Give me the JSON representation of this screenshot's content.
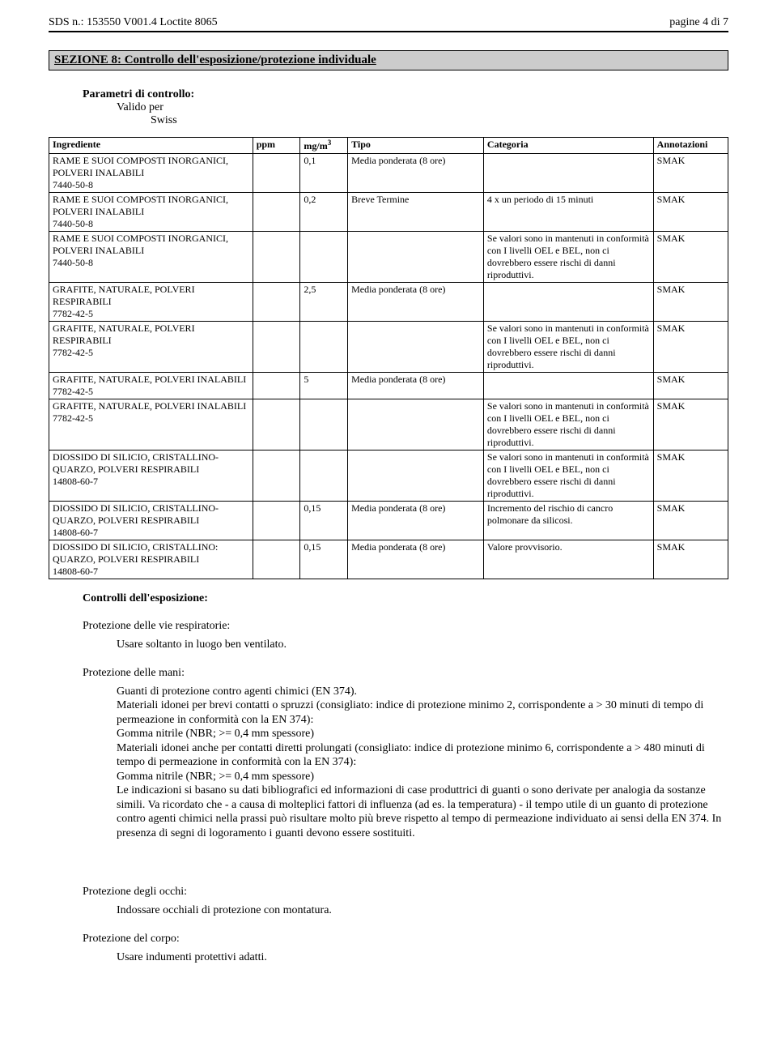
{
  "header": {
    "left": "SDS n.: 153550   V001.4      Loctite 8065",
    "right": "pagine 4 di 7"
  },
  "section_title": "SEZIONE 8: Controllo dell'esposizione/protezione individuale",
  "params_label": "Parametri di controllo:",
  "valido_per": "Valido per",
  "country": "Swiss",
  "table": {
    "columns": {
      "ingrediente": "Ingrediente",
      "ppm": "ppm",
      "mgm3": "mg/m",
      "mgm3_exp": "3",
      "tipo": "Tipo",
      "categoria": "Categoria",
      "annotazioni": "Annotazioni"
    },
    "rows": [
      {
        "ing": "RAME E SUOI COMPOSTI INORGANICI, POLVERI INALABILI\n7440-50-8",
        "ppm": "",
        "mgm3": "0,1",
        "tipo": "Media ponderata (8 ore)",
        "cat": "",
        "ann": "SMAK"
      },
      {
        "ing": "RAME E SUOI COMPOSTI INORGANICI, POLVERI INALABILI\n7440-50-8",
        "ppm": "",
        "mgm3": "0,2",
        "tipo": "Breve Termine",
        "cat": "4 x un periodo di 15 minuti",
        "ann": "SMAK"
      },
      {
        "ing": "RAME E SUOI COMPOSTI INORGANICI, POLVERI INALABILI\n7440-50-8",
        "ppm": "",
        "mgm3": "",
        "tipo": "",
        "cat": "Se valori sono in mantenuti in conformità con I livelli OEL e BEL, non ci dovrebbero essere rischi di danni riproduttivi.",
        "ann": "SMAK"
      },
      {
        "ing": "GRAFITE, NATURALE, POLVERI RESPIRABILI\n7782-42-5",
        "ppm": "",
        "mgm3": "2,5",
        "tipo": "Media ponderata (8 ore)",
        "cat": "",
        "ann": "SMAK"
      },
      {
        "ing": "GRAFITE, NATURALE, POLVERI RESPIRABILI\n7782-42-5",
        "ppm": "",
        "mgm3": "",
        "tipo": "",
        "cat": "Se valori sono in mantenuti in conformità con I livelli OEL e BEL, non ci dovrebbero essere rischi di danni riproduttivi.",
        "ann": "SMAK"
      },
      {
        "ing": "GRAFITE, NATURALE, POLVERI INALABILI\n7782-42-5",
        "ppm": "",
        "mgm3": "5",
        "tipo": "Media ponderata (8 ore)",
        "cat": "",
        "ann": "SMAK"
      },
      {
        "ing": "GRAFITE, NATURALE, POLVERI INALABILI\n7782-42-5",
        "ppm": "",
        "mgm3": "",
        "tipo": "",
        "cat": "Se valori sono in mantenuti in conformità con I livelli OEL e BEL, non ci dovrebbero essere rischi di danni riproduttivi.",
        "ann": "SMAK"
      },
      {
        "ing": "DIOSSIDO DI SILICIO, CRISTALLINO- QUARZO, POLVERI RESPIRABILI\n14808-60-7",
        "ppm": "",
        "mgm3": "",
        "tipo": "",
        "cat": "Se valori sono in mantenuti in conformità con I livelli OEL e BEL, non ci dovrebbero essere rischi di danni riproduttivi.",
        "ann": "SMAK"
      },
      {
        "ing": "DIOSSIDO DI SILICIO, CRISTALLINO- QUARZO, POLVERI RESPIRABILI\n14808-60-7",
        "ppm": "",
        "mgm3": "0,15",
        "tipo": "Media ponderata (8 ore)",
        "cat": "Incremento del rischio di cancro polmonare da silicosi.",
        "ann": "SMAK"
      },
      {
        "ing": "DIOSSIDO DI SILICIO, CRISTALLINO: QUARZO, POLVERI RESPIRABILI\n14808-60-7",
        "ppm": "",
        "mgm3": "0,15",
        "tipo": "Media ponderata (8 ore)",
        "cat": "Valore provvisorio.",
        "ann": "SMAK"
      }
    ],
    "col_widths": {
      "ingrediente_pct": 30,
      "ppm_pct": 7,
      "mgm3_pct": 7,
      "tipo_pct": 20,
      "categoria_pct": 25,
      "annotazioni_pct": 11
    }
  },
  "exposure_controls_label": "Controlli dell'esposizione:",
  "resp": {
    "label": "Protezione delle vie respiratorie:",
    "text": "Usare soltanto in luogo ben ventilato."
  },
  "hands": {
    "label": "Protezione delle mani:",
    "lines": [
      "Guanti di protezione contro agenti chimici (EN 374).",
      "Materiali idonei per brevi contatti o spruzzi (consigliato: indice di protezione minimo 2, corrispondente a > 30 minuti di tempo di permeazione in conformità con la EN 374):",
      "Gomma nitrile (NBR; >= 0,4 mm spessore)",
      "Materiali idonei anche per contatti diretti prolungati (consigliato: indice di protezione minimo 6, corrispondente a > 480 minuti di tempo di permeazione in conformità con la EN 374):",
      "Gomma nitrile (NBR; >= 0,4 mm spessore)",
      "Le indicazioni si basano su dati bibliografici ed informazioni di case produttrici di guanti o sono derivate per analogia da sostanze simili. Va ricordato che - a causa di molteplici fattori di influenza (ad es. la temperatura) - il tempo utile di un guanto di protezione contro agenti chimici nella prassi può risultare molto più breve rispetto al tempo di permeazione individuato ai sensi della EN 374. In presenza di segni di logoramento i guanti devono essere sostituiti."
    ]
  },
  "eyes": {
    "label": "Protezione degli occhi:",
    "text": "Indossare occhiali di protezione con montatura."
  },
  "body": {
    "label": "Protezione del corpo:",
    "text": "Usare indumenti protettivi adatti."
  }
}
